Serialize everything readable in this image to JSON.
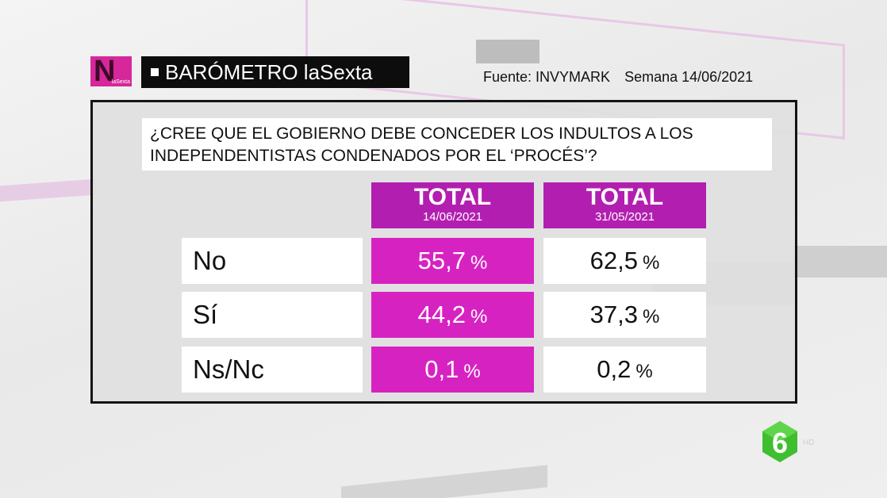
{
  "header": {
    "logo_letter": "N",
    "logo_sub": "laSexta",
    "title": "BARÓMETRO laSexta",
    "source": "Fuente: INVYMARK",
    "week": "Semana 14/06/2021"
  },
  "question": "¿CREE QUE EL GOBIERNO DEBE CONCEDER LOS INDULTOS A LOS INDEPENDENTISTAS CONDENADOS POR EL ‘PROCÉS’?",
  "columns": [
    {
      "label": "TOTAL",
      "date": "14/06/2021"
    },
    {
      "label": "TOTAL",
      "date": "31/05/2021"
    }
  ],
  "rows": [
    {
      "label": "No",
      "values": [
        "55,7",
        "62,5"
      ]
    },
    {
      "label": "Sí",
      "values": [
        "44,2",
        "37,3"
      ]
    },
    {
      "label": "Ns/Nc",
      "values": [
        "0,1",
        "0,2"
      ]
    }
  ],
  "percent_sign": "%",
  "colors": {
    "accent": "#d722c2",
    "header": "#b21fb0",
    "channel_green": "#3fbf2f"
  },
  "channel": {
    "icon": "six-logo-icon",
    "suffix": "HD"
  }
}
